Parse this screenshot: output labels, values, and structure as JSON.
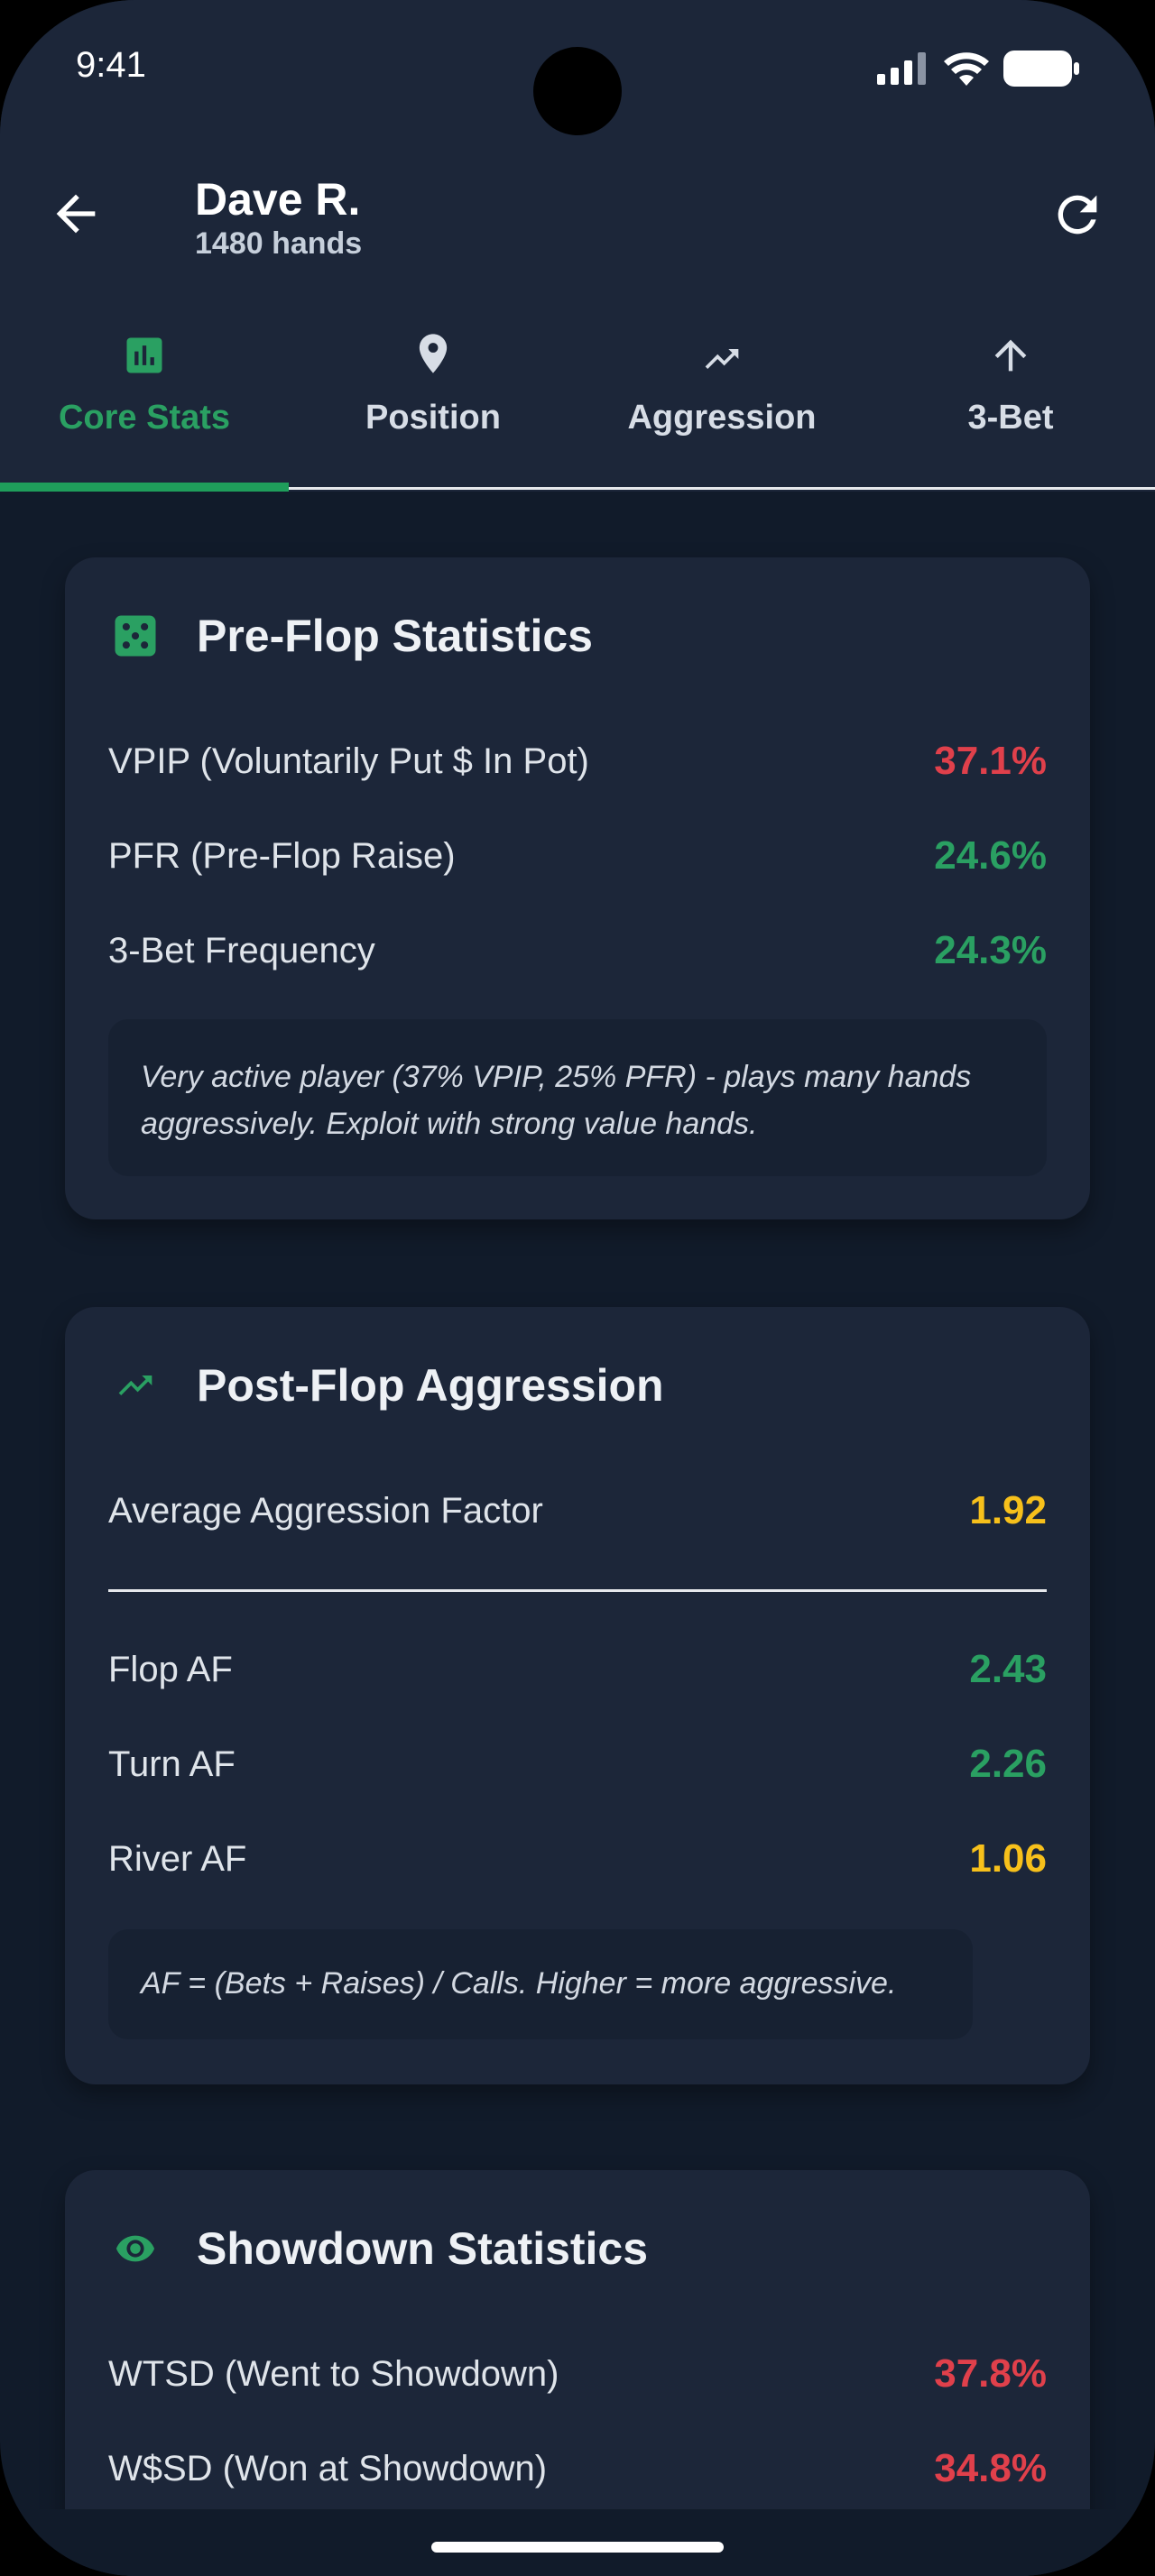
{
  "status": {
    "time": "9:41"
  },
  "header": {
    "name": "Dave R.",
    "hands": "1480 hands"
  },
  "tabs": [
    {
      "label": "Core Stats",
      "icon": "bar-chart-icon",
      "active": true
    },
    {
      "label": "Position",
      "icon": "location-pin-icon",
      "active": false
    },
    {
      "label": "Aggression",
      "icon": "trending-up-icon",
      "active": false
    },
    {
      "label": "3-Bet",
      "icon": "arrow-up-icon",
      "active": false
    }
  ],
  "colors": {
    "accent": "#2aa062",
    "red": "#e0404b",
    "yellow": "#f7c01b",
    "card": "#1c2639",
    "background": "#111b2a"
  },
  "preflop": {
    "title": "Pre-Flop Statistics",
    "icon": "dice-icon",
    "rows": [
      {
        "label": "VPIP (Voluntarily Put $ In Pot)",
        "value": "37.1%",
        "color": "red"
      },
      {
        "label": "PFR (Pre-Flop Raise)",
        "value": "24.6%",
        "color": "green"
      },
      {
        "label": "3-Bet Frequency",
        "value": "24.3%",
        "color": "green"
      }
    ],
    "note": "Very active player (37% VPIP, 25% PFR) - plays many hands aggressively. Exploit with strong value hands."
  },
  "postflop": {
    "title": "Post-Flop Aggression",
    "icon": "trending-up-icon",
    "average": {
      "label": "Average Aggression Factor",
      "value": "1.92",
      "color": "yellow"
    },
    "rows": [
      {
        "label": "Flop AF",
        "value": "2.43",
        "color": "green"
      },
      {
        "label": "Turn AF",
        "value": "2.26",
        "color": "green"
      },
      {
        "label": "River AF",
        "value": "1.06",
        "color": "yellow"
      }
    ],
    "note": "AF = (Bets + Raises) / Calls. Higher = more aggressive."
  },
  "showdown": {
    "title": "Showdown Statistics",
    "icon": "eye-icon",
    "rows": [
      {
        "label": "WTSD (Went to Showdown)",
        "value": "37.8%",
        "color": "red"
      },
      {
        "label": "W$SD (Won at Showdown)",
        "value": "34.8%",
        "color": "red"
      }
    ]
  }
}
